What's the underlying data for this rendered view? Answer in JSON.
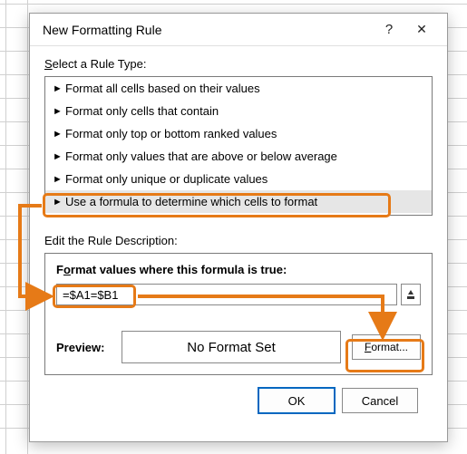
{
  "titlebar": {
    "title": "New Formatting Rule",
    "help": "?",
    "close": "✕"
  },
  "section_select_label_pre": "S",
  "section_select_label_rest": "elect a Rule Type:",
  "rule_types": [
    "Format all cells based on their values",
    "Format only cells that contain",
    "Format only top or bottom ranked values",
    "Format only values that are above or below average",
    "Format only unique or duplicate values",
    "Use a formula to determine which cells to format"
  ],
  "selected_rule_index": 5,
  "edit_desc_label_pre": "Edit the Rule Descriptio",
  "edit_desc_label_u": "n",
  "edit_desc_label_post": ":",
  "formula_label_pre": "F",
  "formula_label_u": "o",
  "formula_label_rest": "rmat values where this formula is true:",
  "formula_value": "=$A1=$B1",
  "collapse_glyph": "⬆",
  "preview_label": "Preview:",
  "preview_text": "No Format Set",
  "format_btn_u": "F",
  "format_btn_rest": "ormat...",
  "ok_label": "OK",
  "cancel_label": "Cancel",
  "annotation_color": "#e67a17"
}
